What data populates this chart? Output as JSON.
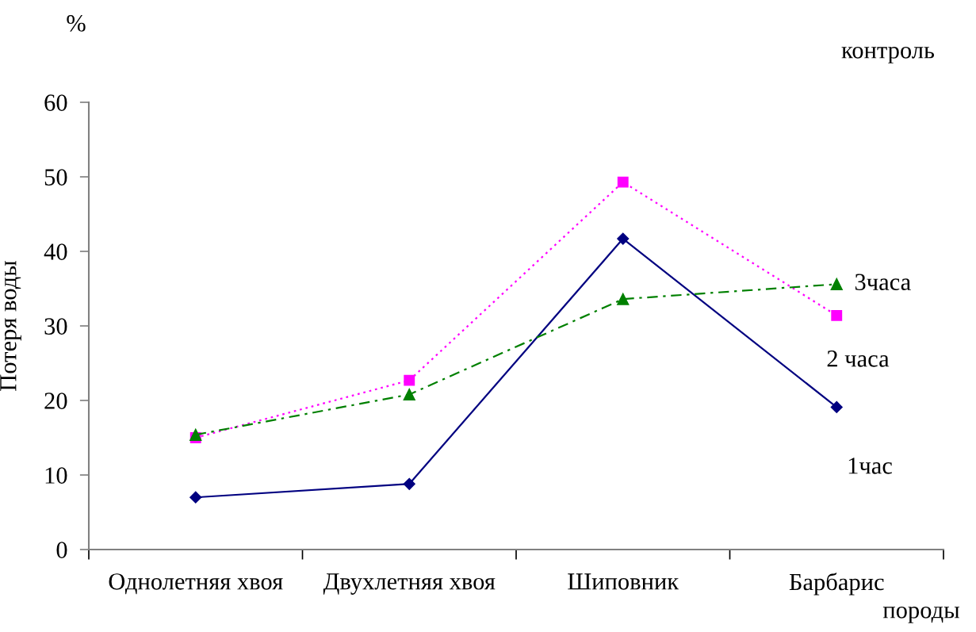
{
  "chart_data": {
    "type": "line",
    "categories": [
      "Однолетняя хвоя",
      "Двухлетняя хвоя",
      "Шиповник",
      "Барбарис"
    ],
    "ylabel": "Потеря воды",
    "xlabel": "породы",
    "ylim": [
      0,
      60
    ],
    "yticks": [
      0,
      10,
      20,
      30,
      40,
      50,
      60
    ],
    "series": [
      {
        "color": "#000080",
        "values": [
          7.0,
          8.8,
          41.7,
          19.1
        ],
        "marker": "diamond",
        "line_style": "solid"
      },
      {
        "color": "#ff00ff",
        "values": [
          15.0,
          22.7,
          49.3,
          31.4
        ],
        "marker": "square",
        "line_style": "dotted"
      },
      {
        "name": "3часа",
        "color": "#008000",
        "values": [
          15.4,
          20.8,
          33.6,
          35.6
        ],
        "marker": "triangle",
        "line_style": "dashdot"
      }
    ],
    "annotations": [
      "%",
      "контроль",
      "2 часа",
      "1час"
    ]
  }
}
